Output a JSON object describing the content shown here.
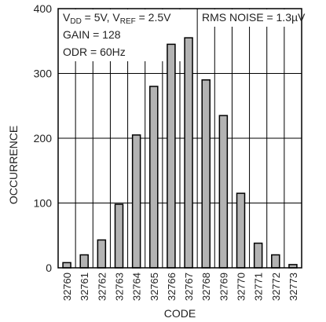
{
  "chart_data": {
    "type": "bar",
    "xlabel": "CODE",
    "ylabel": "OCCURRENCE",
    "ylim": [
      0,
      400
    ],
    "yticks": [
      0,
      100,
      200,
      300,
      400
    ],
    "grid": true,
    "categories": [
      "32760",
      "32761",
      "32762",
      "32763",
      "32764",
      "32765",
      "32766",
      "32767",
      "32768",
      "32769",
      "32770",
      "32771",
      "32772",
      "32773"
    ],
    "values": [
      8,
      20,
      43,
      98,
      205,
      280,
      345,
      355,
      290,
      235,
      115,
      38,
      20,
      5
    ],
    "bar_fill": "#b3b3b3",
    "bar_stroke": "#000000",
    "annotations": {
      "vdd_label": "V",
      "vdd_sub": "DD",
      "vdd_value": " = 5V, V",
      "vref_sub": "REF",
      "vref_value": " = 2.5V",
      "gain": "GAIN = 128",
      "odr": "ODR = 60Hz",
      "noise": "RMS NOISE = 1.3µV"
    }
  }
}
